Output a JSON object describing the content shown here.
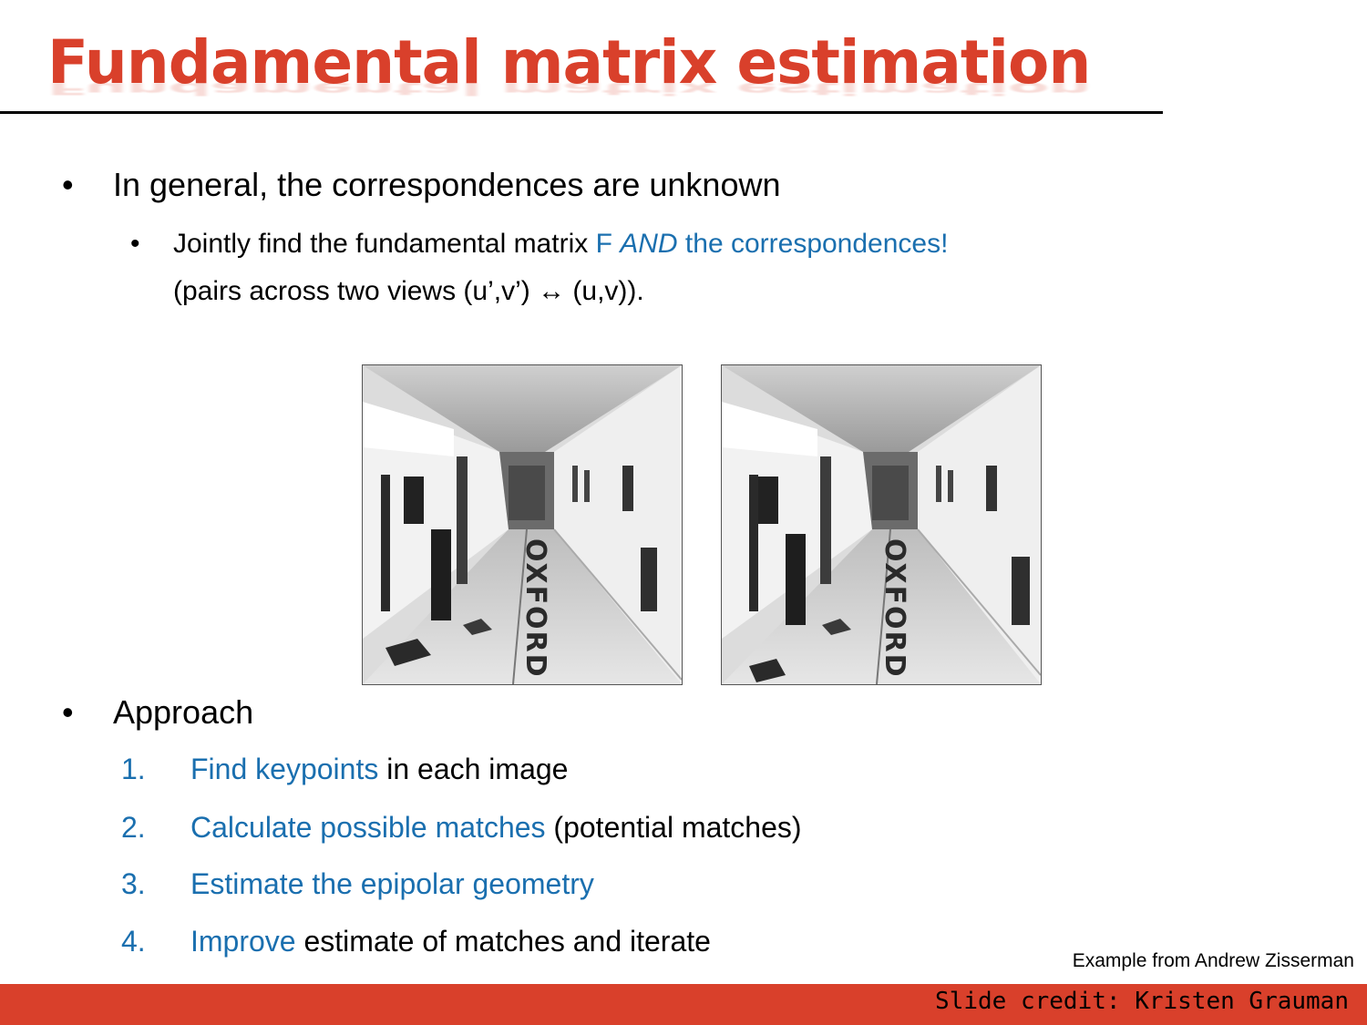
{
  "title": "Fundamental matrix estimation",
  "bullets": [
    {
      "text": "In general, the correspondences are unknown",
      "sub": {
        "line1_pre": "Jointly find the fundamental matrix ",
        "line1_f": "F ",
        "line1_and": "AND",
        "line1_post": " the correspondences!",
        "line2": "(pairs across two views (u’,v’) ↔ (u,v))."
      }
    },
    {
      "text": "Approach"
    }
  ],
  "steps": [
    {
      "num": "1.",
      "highlight": "Find keypoints",
      "rest": " in each image"
    },
    {
      "num": "2.",
      "highlight": "Calculate possible matches",
      "rest": " (potential matches)"
    },
    {
      "num": "3.",
      "highlight": "Estimate the epipolar geometry",
      "rest": ""
    },
    {
      "num": "4.",
      "highlight": "Improve",
      "rest": " estimate of matches and iterate"
    }
  ],
  "images": [
    {
      "name": "corridor-view-left"
    },
    {
      "name": "corridor-view-right"
    }
  ],
  "floor_text": "OXFORD",
  "example_credit": "Example from Andrew Zisserman",
  "slide_credit": "Slide credit: Kristen Grauman",
  "colors": {
    "accent": "#d9402b",
    "link_blue": "#1a6faf"
  }
}
